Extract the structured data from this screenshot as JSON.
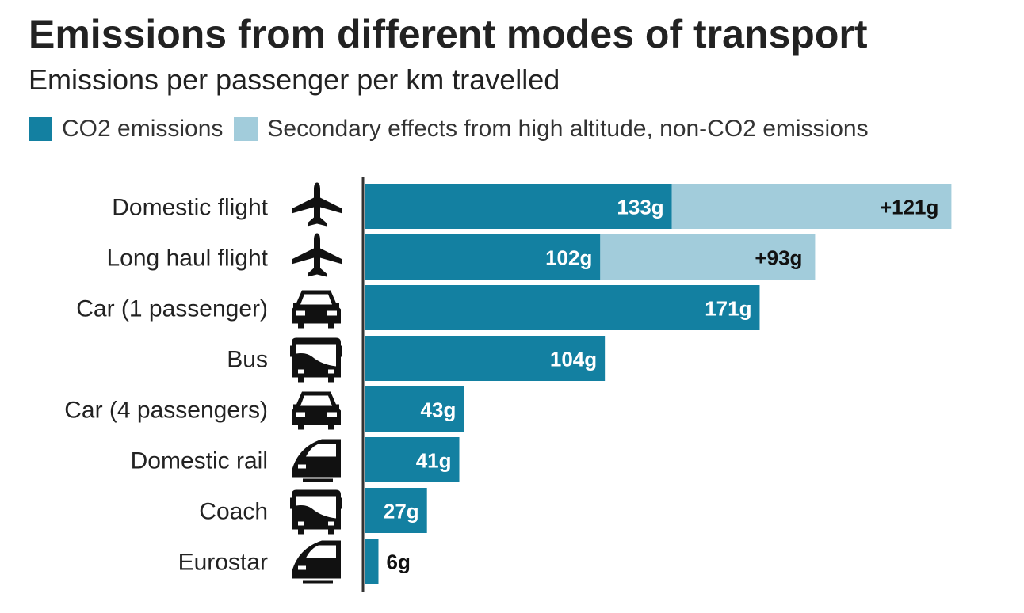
{
  "chart_data": {
    "type": "bar",
    "orientation": "horizontal",
    "stacked": true,
    "title": "Emissions from different modes of transport",
    "subtitle": "Emissions per passenger per km travelled",
    "categories": [
      "Domestic flight",
      "Long haul flight",
      "Car (1 passenger)",
      "Bus",
      "Car (4 passengers)",
      "Domestic rail",
      "Coach",
      "Eurostar"
    ],
    "icons": [
      "plane-icon",
      "plane-icon",
      "car-icon",
      "bus-icon",
      "car-icon",
      "train-icon",
      "bus-icon",
      "train-icon"
    ],
    "series": [
      {
        "name": "CO2 emissions",
        "color": "#1380a1",
        "values": [
          133,
          102,
          171,
          104,
          43,
          41,
          27,
          6
        ],
        "labels": [
          "133g",
          "102g",
          "171g",
          "104g",
          "43g",
          "41g",
          "27g",
          "6g"
        ]
      },
      {
        "name": "Secondary effects from high altitude, non-CO2 emissions",
        "color": "#a2ccdb",
        "values": [
          121,
          93,
          0,
          0,
          0,
          0,
          0,
          0
        ],
        "labels": [
          "+121g",
          "+93g",
          "",
          "",
          "",
          "",
          "",
          ""
        ]
      }
    ],
    "legend_position": "top-left",
    "grid": false,
    "xlim": [
      0,
      260
    ]
  }
}
